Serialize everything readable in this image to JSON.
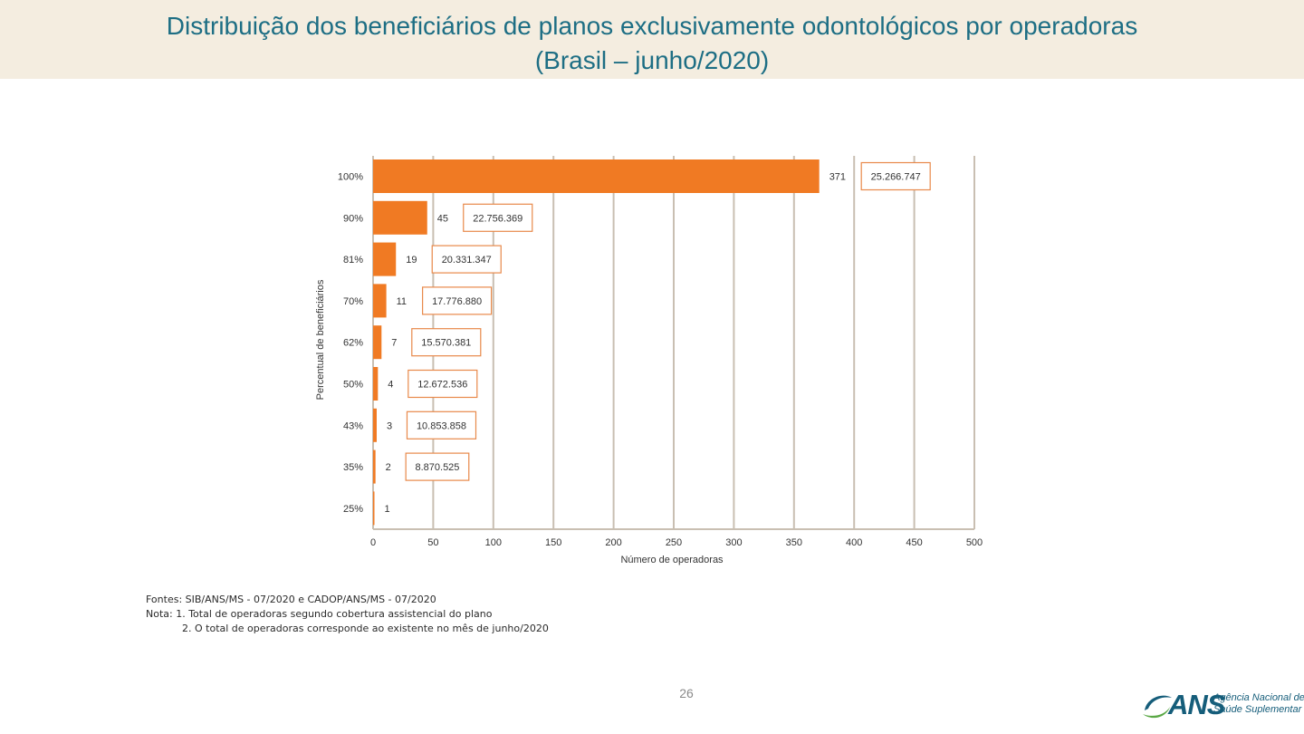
{
  "slide": {
    "title_line1": "Distribuição dos beneficiários de planos exclusivamente odontológicos por operadoras",
    "title_line2": "(Brasil – junho/2020)",
    "page_number": "26"
  },
  "chart_data": {
    "type": "bar",
    "orientation": "horizontal",
    "categories": [
      "100%",
      "90%",
      "81%",
      "70%",
      "62%",
      "50%",
      "43%",
      "35%",
      "25%"
    ],
    "values": [
      371,
      45,
      19,
      11,
      7,
      4,
      3,
      2,
      1
    ],
    "value_labels": [
      "371",
      "45",
      "19",
      "11",
      "7",
      "4",
      "3",
      "2",
      "1"
    ],
    "callouts": [
      "25.266.747",
      "22.756.369",
      "20.331.347",
      "17.776.880",
      "15.570.381",
      "12.672.536",
      "10.853.858",
      "8.870.525",
      null
    ],
    "xlabel": "Número de operadoras",
    "ylabel": "Percentual de beneficiários",
    "xlim": [
      0,
      500
    ],
    "xticks": [
      0,
      50,
      100,
      150,
      200,
      250,
      300,
      350,
      400,
      450,
      500
    ],
    "grid": "vertical",
    "bar_color": "#f07a23",
    "callout_border_color": "#e8894a",
    "grid_color": "#c9bfb2"
  },
  "notes": {
    "sources": "Fontes: SIB/ANS/MS - 07/2020 e CADOP/ANS/MS - 07/2020",
    "note1": "Nota: 1. Total de operadoras segundo cobertura assistencial do plano",
    "note2": "2. O total de operadoras corresponde ao existente no mês de junho/2020"
  },
  "logo": {
    "acronym": "ANS",
    "name_line1": "Agência Nacional de",
    "name_line2": "Saúde Suplementar",
    "color": "#155d7a",
    "accent_color": "#5aa845"
  }
}
